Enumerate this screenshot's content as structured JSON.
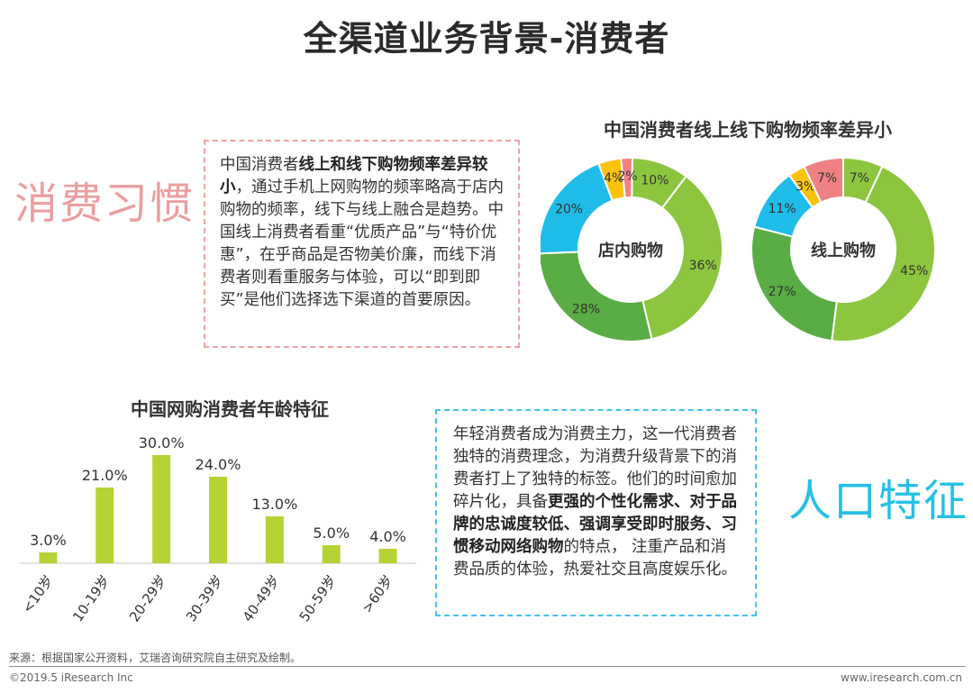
{
  "title": "全渠道业务背景-消费者",
  "labels": {
    "habit": "消费习惯",
    "demographics": "人口特征"
  },
  "habit_box": {
    "p1": "中国消费者",
    "b1": "线上和线下购物频率差异较小",
    "p2": "，通过手机上网购物的频率略高于店内购物的频率，线下与线上融合是趋势。中国线上消费者看重“优质产品”与“特价优惠”，在乎商品是否物美价廉，而线下消费者则看重服务与体验，可以“即到即买”是他们选择选下渠道的首要原因。"
  },
  "demo_box": {
    "p1": "年轻消费者成为消费主力，这一代消费者独特的消费理念，为消费升级背景下的消费者打上了独特的标签。他们的时间愈加碎片化，具备",
    "b1": "更强的个性化需求、对于品牌的忠诚度较低、强调享受即时服务、习惯移动网络购物",
    "p2": "的特点， 注重产品和消费品质的体验，热爱社交且高度娱乐化。"
  },
  "colors": {
    "green_light": "#8cc63f",
    "green_dark": "#5aac44",
    "blue": "#1fbcea",
    "yellow": "#fcc20e",
    "pink": "#f08183",
    "bar_green": "#b5d334"
  },
  "chart_data": [
    {
      "type": "pie",
      "title": "中国消费者线上线下购物频率差异小",
      "donuts": [
        {
          "name": "店内购物",
          "values": [
            10,
            36,
            28,
            20,
            4,
            2
          ],
          "labels": [
            "10%",
            "36%",
            "28%",
            "20%",
            "4%",
            "2%"
          ]
        },
        {
          "name": "线上购物",
          "values": [
            7,
            45,
            27,
            11,
            3,
            7
          ],
          "labels": [
            "7%",
            "45%",
            "27%",
            "11%",
            "3%",
            "7%"
          ]
        }
      ],
      "segment_colors": [
        "#8cc63f",
        "#8cc63f",
        "#5aac44",
        "#1fbcea",
        "#fcc20e",
        "#f08183"
      ]
    },
    {
      "type": "bar",
      "title": "中国网购消费者年龄特征",
      "categories": [
        "<10岁",
        "10-19岁",
        "20-29岁",
        "30-39岁",
        "40-49岁",
        "50-59岁",
        ">60岁"
      ],
      "values": [
        3.0,
        21.0,
        30.0,
        24.0,
        13.0,
        5.0,
        4.0
      ],
      "value_labels": [
        "3.0%",
        "21.0%",
        "30.0%",
        "24.0%",
        "13.0%",
        "5.0%",
        "4.0%"
      ],
      "ylim": [
        0,
        30
      ]
    }
  ],
  "footer": {
    "source": "来源：根据国家公开资料，艾瑞咨询研究院自主研究及绘制。",
    "copyright": "©2019.5 iResearch Inc",
    "url": "www.iresearch.com.cn"
  }
}
